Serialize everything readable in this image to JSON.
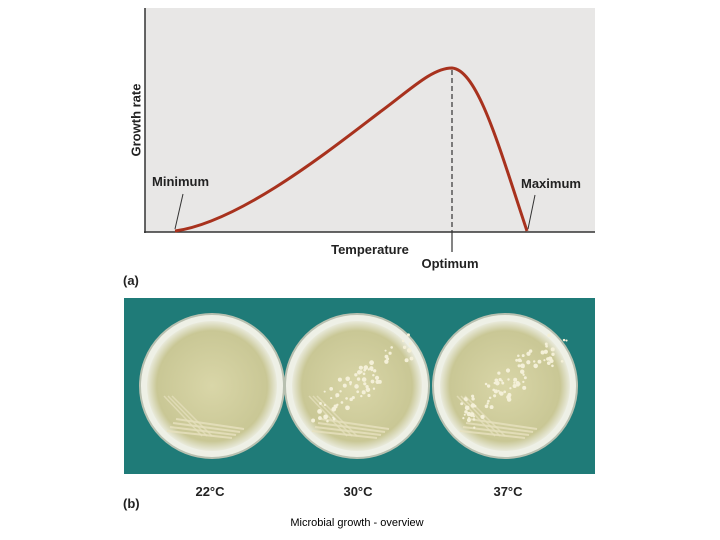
{
  "panel_a": {
    "label": "(a)",
    "y_axis_label": "Growth rate",
    "x_axis_label": "Temperature",
    "annotations": {
      "minimum": "Minimum",
      "optimum": "Optimum",
      "maximum": "Maximum"
    }
  },
  "panel_b": {
    "label": "(b)",
    "plates": [
      "22°C",
      "30°C",
      "37°C"
    ]
  },
  "caption": "Microbial growth - overview"
}
